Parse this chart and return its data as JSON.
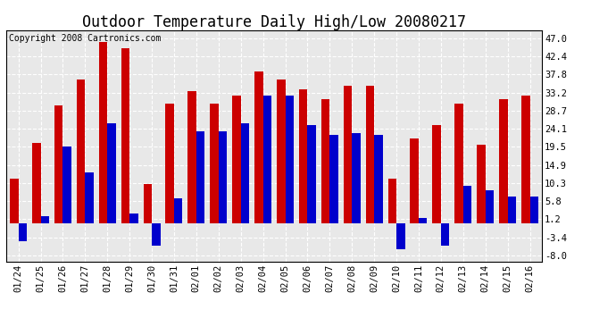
{
  "title": "Outdoor Temperature Daily High/Low 20080217",
  "copyright": "Copyright 2008 Cartronics.com",
  "dates": [
    "01/24",
    "01/25",
    "01/26",
    "01/27",
    "01/28",
    "01/29",
    "01/30",
    "01/31",
    "02/01",
    "02/02",
    "02/03",
    "02/04",
    "02/05",
    "02/06",
    "02/07",
    "02/08",
    "02/09",
    "02/10",
    "02/11",
    "02/12",
    "02/13",
    "02/14",
    "02/15",
    "02/16"
  ],
  "highs": [
    11.5,
    20.5,
    30.0,
    36.5,
    46.0,
    44.5,
    10.0,
    30.5,
    33.5,
    30.5,
    32.5,
    38.5,
    36.5,
    34.0,
    31.5,
    35.0,
    35.0,
    11.5,
    21.5,
    25.0,
    30.5,
    20.0,
    31.5,
    32.5
  ],
  "lows": [
    -4.5,
    2.0,
    19.5,
    13.0,
    25.5,
    2.5,
    -5.5,
    6.5,
    23.5,
    23.5,
    25.5,
    32.5,
    32.5,
    25.0,
    22.5,
    23.0,
    22.5,
    -6.5,
    1.5,
    -5.5,
    9.5,
    8.5,
    7.0,
    7.0
  ],
  "high_color": "#cc0000",
  "low_color": "#0000cc",
  "bg_color": "#ffffff",
  "plot_bg_color": "#e8e8e8",
  "grid_color": "#ffffff",
  "yticks": [
    -8.0,
    -3.4,
    1.2,
    5.8,
    10.3,
    14.9,
    19.5,
    24.1,
    28.7,
    33.2,
    37.8,
    42.4,
    47.0
  ],
  "ylim": [
    -9.5,
    49.0
  ],
  "title_fontsize": 12,
  "copyright_fontsize": 7,
  "tick_fontsize": 7.5,
  "bar_width": 0.38
}
